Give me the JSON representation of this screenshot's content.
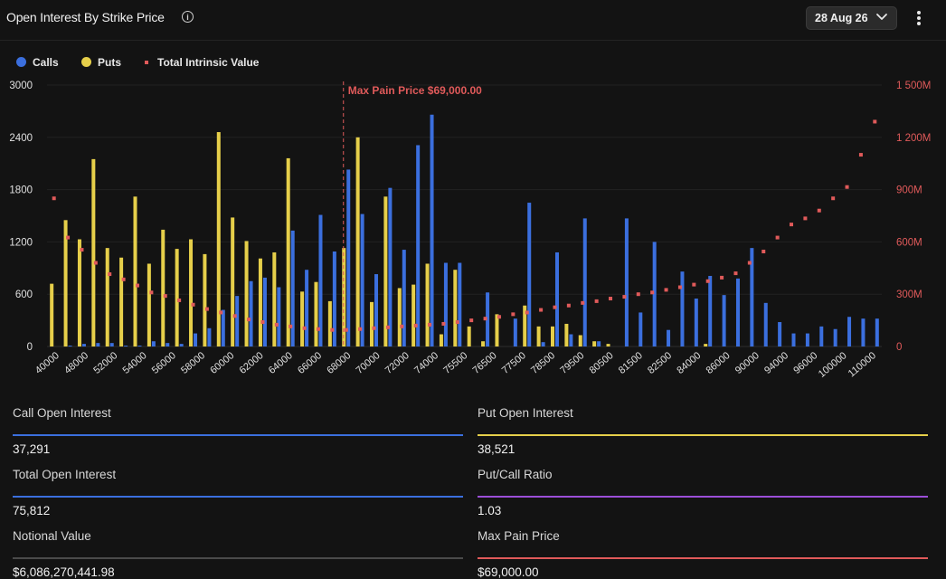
{
  "header": {
    "title": "Open Interest By Strike Price",
    "date_selected": "28 Aug 26"
  },
  "legend": [
    {
      "label": "Calls",
      "color": "#3b6fde"
    },
    {
      "label": "Puts",
      "color": "#e6cf4a"
    },
    {
      "label": "Total Intrinsic Value",
      "color": "#e05a5a"
    }
  ],
  "chart_data": {
    "type": "bar",
    "series_types": {
      "Calls": "bar",
      "Puts": "bar",
      "Total Intrinsic Value": "scatter"
    },
    "categories": [
      "40000",
      "48000",
      "52000",
      "54000",
      "56000",
      "58000",
      "60000",
      "62000",
      "64000",
      "66000",
      "68000",
      "70000",
      "72000",
      "74000",
      "75500",
      "76500",
      "77500",
      "78500",
      "79500",
      "80500",
      "81500",
      "82500",
      "84000",
      "86000",
      "90000",
      "94000",
      "96000",
      "100000",
      "110000"
    ],
    "y_left_ticks": [
      "0",
      "600",
      "1200",
      "1800",
      "2400",
      "3000"
    ],
    "y_right_ticks": [
      "0",
      "300M",
      "600M",
      "900M",
      "1 200M",
      "1 500M"
    ],
    "ylim_left": [
      0,
      3000
    ],
    "ylim_right": [
      0,
      1500
    ],
    "grid": true,
    "annotation": {
      "label": "Max Pain Price $69,000.00",
      "at_index": 21
    },
    "bars": [
      {
        "call": 0,
        "put": 720,
        "iv": 850
      },
      {
        "call": 10,
        "put": 1450,
        "iv": 625
      },
      {
        "call": 30,
        "put": 1230,
        "iv": 555
      },
      {
        "call": 40,
        "put": 2150,
        "iv": 480
      },
      {
        "call": 40,
        "put": 1130,
        "iv": 415
      },
      {
        "call": 10,
        "put": 1020,
        "iv": 385
      },
      {
        "call": 10,
        "put": 1720,
        "iv": 350
      },
      {
        "call": 60,
        "put": 950,
        "iv": 310
      },
      {
        "call": 40,
        "put": 1340,
        "iv": 290
      },
      {
        "call": 30,
        "put": 1120,
        "iv": 265
      },
      {
        "call": 150,
        "put": 1230,
        "iv": 240
      },
      {
        "call": 210,
        "put": 1060,
        "iv": 215
      },
      {
        "call": 420,
        "put": 2460,
        "iv": 195
      },
      {
        "call": 580,
        "put": 1480,
        "iv": 175
      },
      {
        "call": 750,
        "put": 1210,
        "iv": 155
      },
      {
        "call": 790,
        "put": 1010,
        "iv": 140
      },
      {
        "call": 680,
        "put": 1080,
        "iv": 125
      },
      {
        "call": 1330,
        "put": 2160,
        "iv": 115
      },
      {
        "call": 880,
        "put": 630,
        "iv": 105
      },
      {
        "call": 1510,
        "put": 740,
        "iv": 100
      },
      {
        "call": 1090,
        "put": 520,
        "iv": 95
      },
      {
        "call": 2030,
        "put": 1130,
        "iv": 95
      },
      {
        "call": 1520,
        "put": 2400,
        "iv": 100
      },
      {
        "call": 830,
        "put": 510,
        "iv": 105
      },
      {
        "call": 1820,
        "put": 1720,
        "iv": 110
      },
      {
        "call": 1110,
        "put": 670,
        "iv": 115
      },
      {
        "call": 2310,
        "put": 710,
        "iv": 120
      },
      {
        "call": 2660,
        "put": 950,
        "iv": 125
      },
      {
        "call": 960,
        "put": 140,
        "iv": 130
      },
      {
        "call": 960,
        "put": 880,
        "iv": 140
      },
      {
        "call": 0,
        "put": 230,
        "iv": 150
      },
      {
        "call": 620,
        "put": 60,
        "iv": 160
      },
      {
        "call": 0,
        "put": 370,
        "iv": 170
      },
      {
        "call": 320,
        "put": 0,
        "iv": 185
      },
      {
        "call": 1650,
        "put": 470,
        "iv": 195
      },
      {
        "call": 50,
        "put": 230,
        "iv": 210
      },
      {
        "call": 1080,
        "put": 230,
        "iv": 225
      },
      {
        "call": 140,
        "put": 260,
        "iv": 235
      },
      {
        "call": 1470,
        "put": 130,
        "iv": 250
      },
      {
        "call": 60,
        "put": 60,
        "iv": 260
      },
      {
        "call": 0,
        "put": 30,
        "iv": 275
      },
      {
        "call": 1470,
        "put": 0,
        "iv": 285
      },
      {
        "call": 390,
        "put": 0,
        "iv": 300
      },
      {
        "call": 1200,
        "put": 0,
        "iv": 310
      },
      {
        "call": 190,
        "put": 0,
        "iv": 325
      },
      {
        "call": 860,
        "put": 0,
        "iv": 340
      },
      {
        "call": 550,
        "put": 0,
        "iv": 355
      },
      {
        "call": 810,
        "put": 30,
        "iv": 375
      },
      {
        "call": 590,
        "put": 0,
        "iv": 395
      },
      {
        "call": 780,
        "put": 0,
        "iv": 420
      },
      {
        "call": 1130,
        "put": 0,
        "iv": 480
      },
      {
        "call": 500,
        "put": 0,
        "iv": 545
      },
      {
        "call": 280,
        "put": 0,
        "iv": 625
      },
      {
        "call": 150,
        "put": 0,
        "iv": 700
      },
      {
        "call": 150,
        "put": 0,
        "iv": 735
      },
      {
        "call": 230,
        "put": 0,
        "iv": 780
      },
      {
        "call": 200,
        "put": 0,
        "iv": 850
      },
      {
        "call": 340,
        "put": 0,
        "iv": 915
      },
      {
        "call": 320,
        "put": 0,
        "iv": 1100
      },
      {
        "call": 320,
        "put": 0,
        "iv": 1290
      }
    ]
  },
  "stats": [
    {
      "label": "Call Open Interest",
      "value": "37,291",
      "color": "#3b6fde"
    },
    {
      "label": "Put Open Interest",
      "value": "38,521",
      "color": "#e6cf4a"
    },
    {
      "label": "Total Open Interest",
      "value": "75,812",
      "color": "#3b6fde"
    },
    {
      "label": "Put/Call Ratio",
      "value": "1.03",
      "color": "#9b4fd8"
    },
    {
      "label": "Notional Value",
      "value": "$6,086,270,441.98",
      "color": "#4a4a4a"
    },
    {
      "label": "Max Pain Price",
      "value": "$69,000.00",
      "color": "#e05a5a"
    }
  ]
}
